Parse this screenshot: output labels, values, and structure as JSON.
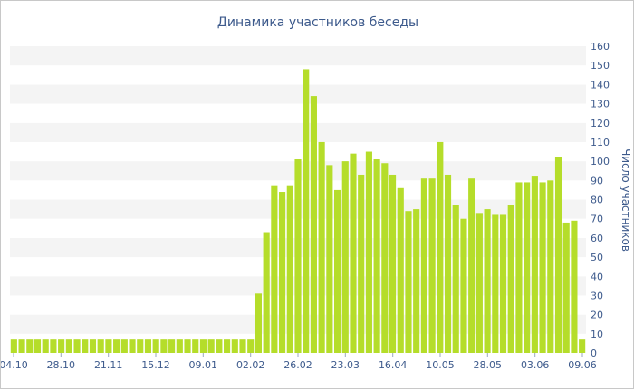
{
  "chart_data": {
    "type": "bar",
    "title": "Динамика участников беседы",
    "xlabel": "",
    "ylabel": "Число участников",
    "ylim": [
      0,
      160
    ],
    "y_ticks": [
      0,
      10,
      20,
      30,
      40,
      50,
      60,
      70,
      80,
      90,
      100,
      110,
      120,
      130,
      140,
      150,
      160
    ],
    "x_tick_labels": [
      "04.10",
      "28.10",
      "21.11",
      "15.12",
      "09.01",
      "02.02",
      "26.02",
      "23.03",
      "16.04",
      "10.05",
      "28.05",
      "03.06",
      "09.06"
    ],
    "grid": "horizontal-bands",
    "bar_color": "#b5dd2a",
    "values": [
      7,
      7,
      7,
      7,
      7,
      7,
      7,
      7,
      7,
      7,
      7,
      7,
      7,
      7,
      7,
      7,
      7,
      7,
      7,
      7,
      7,
      7,
      7,
      7,
      7,
      7,
      7,
      7,
      7,
      7,
      7,
      31,
      63,
      87,
      84,
      87,
      101,
      148,
      134,
      110,
      98,
      85,
      100,
      104,
      93,
      105,
      101,
      99,
      93,
      86,
      74,
      75,
      91,
      91,
      110,
      93,
      77,
      70,
      91,
      73,
      75,
      72,
      72,
      77,
      89,
      89,
      92,
      89,
      90,
      102,
      68,
      69,
      7
    ]
  }
}
